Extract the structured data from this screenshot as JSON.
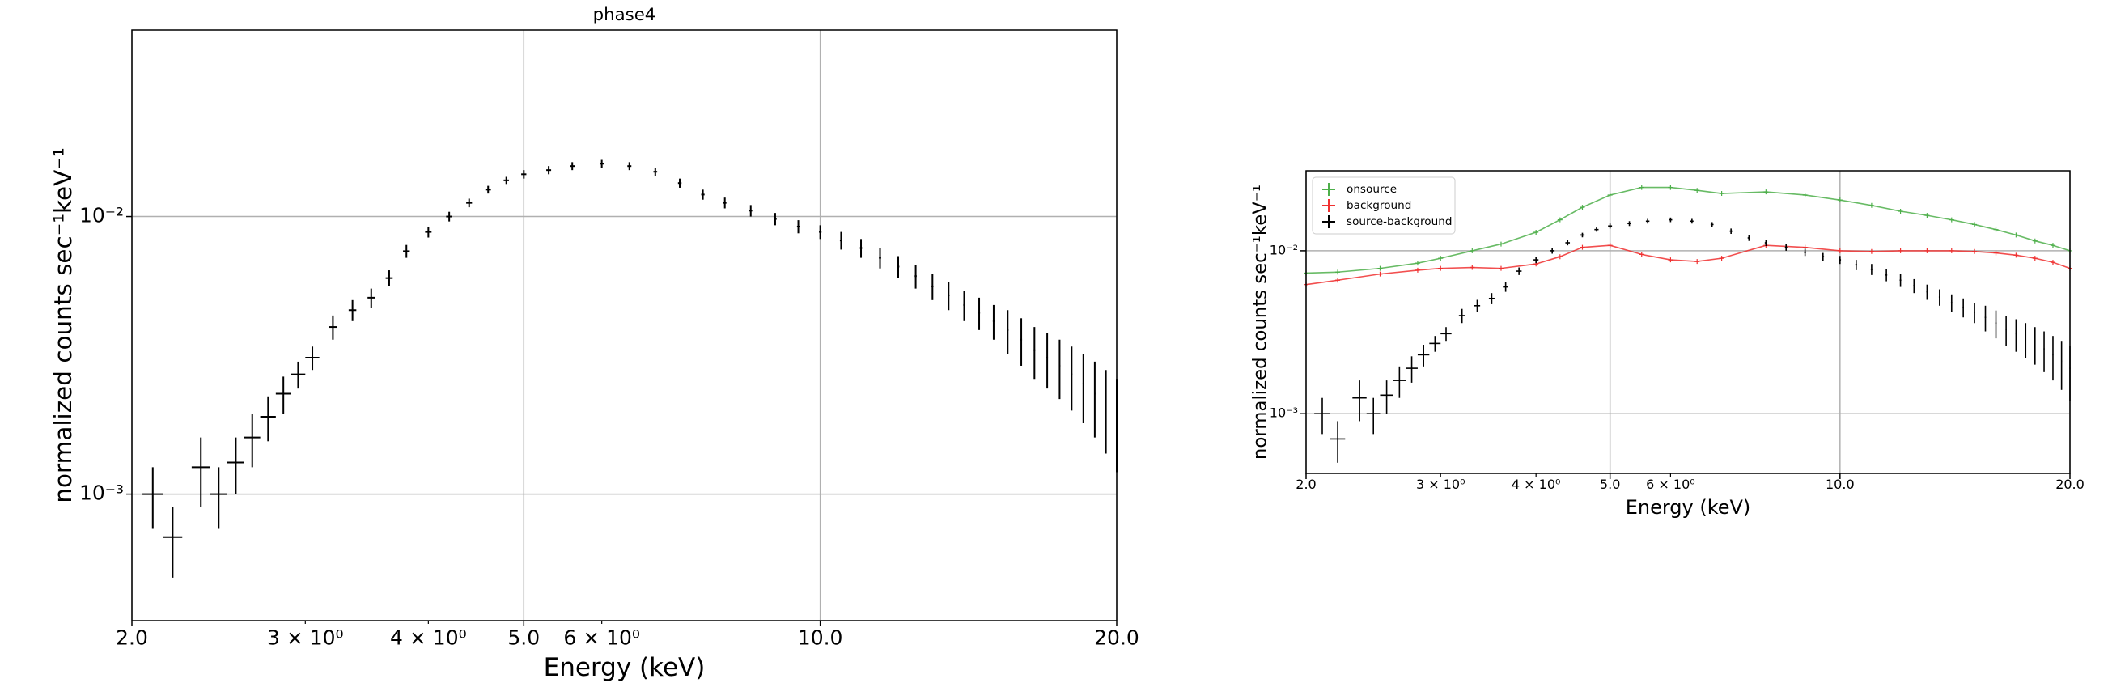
{
  "chart_data": [
    {
      "type": "errorbar",
      "title": "phase4",
      "xlabel": "Energy (keV)",
      "ylabel": "normalized counts sec⁻¹keV⁻¹",
      "xscale": "log",
      "yscale": "log",
      "grid": true,
      "xlim": [
        2,
        20
      ],
      "ylim": [
        0.00035,
        0.047
      ],
      "xticks": [
        {
          "value": 2,
          "label": "2.0"
        },
        {
          "value": 5,
          "label": "5.0"
        },
        {
          "value": 10,
          "label": "10.0"
        },
        {
          "value": 20,
          "label": "20.0"
        }
      ],
      "xminorticks": [
        {
          "value": 3,
          "label": "3 × 10⁰"
        },
        {
          "value": 4,
          "label": "4 × 10⁰"
        },
        {
          "value": 6,
          "label": "6 × 10⁰"
        }
      ],
      "yticks": [
        {
          "value": 0.001,
          "label": "10⁻³"
        },
        {
          "value": 0.01,
          "label": "10⁻²"
        }
      ],
      "series": [
        {
          "color": "#000000",
          "x": [
            2.1,
            2.2,
            2.35,
            2.45,
            2.55,
            2.65,
            2.75,
            2.85,
            2.95,
            3.05,
            3.2,
            3.35,
            3.5,
            3.65,
            3.8,
            4.0,
            4.2,
            4.4,
            4.6,
            4.8,
            5.0,
            5.3,
            5.6,
            6.0,
            6.4,
            6.8,
            7.2,
            7.6,
            8.0,
            8.5,
            9.0,
            9.5,
            10,
            10.5,
            11,
            11.5,
            12,
            12.5,
            13,
            13.5,
            14,
            14.5,
            15,
            15.5,
            16,
            16.5,
            17,
            17.5,
            18,
            18.5,
            19,
            19.5,
            20
          ],
          "xerr": [
            0.05,
            0.05,
            0.05,
            0.05,
            0.05,
            0.05,
            0.05,
            0.05,
            0.05,
            0.05,
            0.03,
            0.03,
            0.03,
            0.03,
            0.03,
            0.03,
            0.03,
            0.03,
            0.03,
            0.03,
            0.03,
            0.03,
            0.03,
            0.03,
            0.03,
            0.03,
            0.03,
            0.03,
            0.03,
            0.03,
            0.03,
            0.03,
            0.03,
            0.03,
            0.03,
            0.03,
            0.03,
            0.03,
            0.03,
            0.03,
            0.03,
            0.03,
            0.03,
            0.03,
            0.03,
            0.03,
            0.03,
            0.03,
            0.03,
            0.03,
            0.03,
            0.03,
            0.03
          ],
          "values": [
            0.001,
            0.0007,
            0.00125,
            0.001,
            0.0013,
            0.0016,
            0.0019,
            0.0023,
            0.0027,
            0.0031,
            0.004,
            0.0046,
            0.0051,
            0.006,
            0.0075,
            0.0088,
            0.01,
            0.0112,
            0.0125,
            0.0135,
            0.0142,
            0.0147,
            0.0152,
            0.0155,
            0.0152,
            0.0145,
            0.0132,
            0.012,
            0.0112,
            0.0105,
            0.0098,
            0.0092,
            0.0088,
            0.0082,
            0.0077,
            0.0071,
            0.0066,
            0.0061,
            0.0056,
            0.0052,
            0.0048,
            0.0045,
            0.0042,
            0.0039,
            0.0036,
            0.0033,
            0.0031,
            0.0029,
            0.0027,
            0.0025,
            0.0023,
            0.0021,
            0.0019
          ],
          "errors": [
            0.00025,
            0.0002,
            0.00035,
            0.00025,
            0.0003,
            0.00035,
            0.00035,
            0.00035,
            0.0003,
            0.0003,
            0.0004,
            0.0004,
            0.0004,
            0.0004,
            0.0004,
            0.0004,
            0.0004,
            0.0004,
            0.0004,
            0.0004,
            0.0005,
            0.0005,
            0.0005,
            0.0005,
            0.0005,
            0.0005,
            0.0005,
            0.0005,
            0.0005,
            0.0005,
            0.0005,
            0.0005,
            0.0005,
            0.0006,
            0.0006,
            0.0006,
            0.0006,
            0.0006,
            0.0006,
            0.0006,
            0.0006,
            0.0006,
            0.0006,
            0.0007,
            0.0007,
            0.0007,
            0.0007,
            0.0007,
            0.0007,
            0.0007,
            0.0007,
            0.0007,
            0.0007
          ]
        }
      ]
    },
    {
      "type": "errorbar",
      "xlabel": "Energy (keV)",
      "ylabel": "normalized counts sec⁻¹keV⁻¹",
      "xscale": "log",
      "yscale": "log",
      "grid": true,
      "legend": "upper left",
      "xlim": [
        2,
        20
      ],
      "ylim": [
        0.00043,
        0.031
      ],
      "xticks": [
        {
          "value": 2,
          "label": "2.0"
        },
        {
          "value": 5,
          "label": "5.0"
        },
        {
          "value": 10,
          "label": "10.0"
        },
        {
          "value": 20,
          "label": "20.0"
        }
      ],
      "xminorticks": [
        {
          "value": 3,
          "label": "3 × 10⁰"
        },
        {
          "value": 4,
          "label": "4 × 10⁰"
        },
        {
          "value": 6,
          "label": "6 × 10⁰"
        }
      ],
      "yticks": [
        {
          "value": 0.001,
          "label": "10⁻³"
        },
        {
          "value": 0.01,
          "label": "10⁻²"
        }
      ],
      "series": [
        {
          "name": "onsource",
          "color": "#4daf4a",
          "x": [
            2.0,
            2.2,
            2.5,
            2.8,
            3.0,
            3.3,
            3.6,
            4.0,
            4.3,
            4.6,
            5.0,
            5.5,
            6.0,
            6.5,
            7.0,
            8.0,
            9.0,
            10,
            11,
            12,
            13,
            14,
            15,
            16,
            17,
            18,
            19,
            20
          ],
          "values": [
            0.0073,
            0.0074,
            0.0078,
            0.0084,
            0.009,
            0.01,
            0.011,
            0.013,
            0.0155,
            0.0185,
            0.022,
            0.0245,
            0.0245,
            0.0235,
            0.0225,
            0.023,
            0.022,
            0.0205,
            0.019,
            0.0175,
            0.0165,
            0.0155,
            0.0145,
            0.0135,
            0.0125,
            0.0115,
            0.0108,
            0.01
          ]
        },
        {
          "name": "background",
          "color": "#f03030",
          "x": [
            2.0,
            2.2,
            2.5,
            2.8,
            3.0,
            3.3,
            3.6,
            4.0,
            4.3,
            4.6,
            5.0,
            5.5,
            6.0,
            6.5,
            7.0,
            8.0,
            9.0,
            10,
            11,
            12,
            13,
            14,
            15,
            16,
            17,
            18,
            19,
            20
          ],
          "values": [
            0.0062,
            0.0066,
            0.0072,
            0.0076,
            0.0078,
            0.0079,
            0.0078,
            0.0083,
            0.0092,
            0.0105,
            0.0108,
            0.0095,
            0.0088,
            0.0086,
            0.009,
            0.0108,
            0.0105,
            0.01,
            0.0099,
            0.01,
            0.01,
            0.01,
            0.0099,
            0.0097,
            0.0094,
            0.009,
            0.0085,
            0.0078
          ]
        },
        {
          "name": "source-background",
          "color": "#000000",
          "x": [
            2.1,
            2.2,
            2.35,
            2.45,
            2.55,
            2.65,
            2.75,
            2.85,
            2.95,
            3.05,
            3.2,
            3.35,
            3.5,
            3.65,
            3.8,
            4.0,
            4.2,
            4.4,
            4.6,
            4.8,
            5.0,
            5.3,
            5.6,
            6.0,
            6.4,
            6.8,
            7.2,
            7.6,
            8.0,
            8.5,
            9.0,
            9.5,
            10,
            10.5,
            11,
            11.5,
            12,
            12.5,
            13,
            13.5,
            14,
            14.5,
            15,
            15.5,
            16,
            16.5,
            17,
            17.5,
            18,
            18.5,
            19,
            19.5,
            20
          ],
          "xerr": [
            0.05,
            0.05,
            0.05,
            0.05,
            0.05,
            0.05,
            0.05,
            0.05,
            0.05,
            0.05,
            0.03,
            0.03,
            0.03,
            0.03,
            0.03,
            0.03,
            0.03,
            0.03,
            0.03,
            0.03,
            0.03,
            0.03,
            0.03,
            0.03,
            0.03,
            0.03,
            0.03,
            0.03,
            0.03,
            0.03,
            0.03,
            0.03,
            0.03,
            0.03,
            0.03,
            0.03,
            0.03,
            0.03,
            0.03,
            0.03,
            0.03,
            0.03,
            0.03,
            0.03,
            0.03,
            0.03,
            0.03,
            0.03,
            0.03,
            0.03,
            0.03,
            0.03,
            0.03
          ],
          "values": [
            0.001,
            0.0007,
            0.00125,
            0.001,
            0.0013,
            0.0016,
            0.0019,
            0.0023,
            0.0027,
            0.0031,
            0.004,
            0.0046,
            0.0051,
            0.006,
            0.0075,
            0.0088,
            0.01,
            0.0112,
            0.0125,
            0.0135,
            0.0142,
            0.0147,
            0.0152,
            0.0155,
            0.0152,
            0.0145,
            0.0132,
            0.012,
            0.0112,
            0.0105,
            0.0098,
            0.0092,
            0.0088,
            0.0082,
            0.0077,
            0.0071,
            0.0066,
            0.0061,
            0.0056,
            0.0052,
            0.0048,
            0.0045,
            0.0042,
            0.0039,
            0.0036,
            0.0033,
            0.0031,
            0.0029,
            0.0027,
            0.0025,
            0.0023,
            0.0021,
            0.0019
          ],
          "errors": [
            0.00025,
            0.0002,
            0.00035,
            0.00025,
            0.0003,
            0.00035,
            0.00035,
            0.00035,
            0.0003,
            0.0003,
            0.0004,
            0.0004,
            0.0004,
            0.0004,
            0.0004,
            0.0004,
            0.0004,
            0.0004,
            0.0004,
            0.0004,
            0.0005,
            0.0005,
            0.0005,
            0.0005,
            0.0005,
            0.0005,
            0.0005,
            0.0005,
            0.0005,
            0.0005,
            0.0005,
            0.0005,
            0.0005,
            0.0006,
            0.0006,
            0.0006,
            0.0006,
            0.0006,
            0.0006,
            0.0006,
            0.0006,
            0.0006,
            0.0006,
            0.0007,
            0.0007,
            0.0007,
            0.0007,
            0.0007,
            0.0007,
            0.0007,
            0.0007,
            0.0007,
            0.0007
          ]
        }
      ]
    }
  ]
}
